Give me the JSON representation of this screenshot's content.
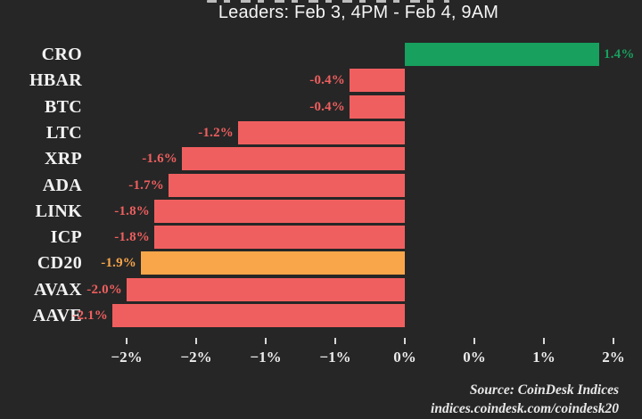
{
  "chart_data": {
    "type": "bar",
    "orientation": "horizontal",
    "title": "Leaders: Feb 3, 4PM - Feb 4, 9AM",
    "categories": [
      "CRO",
      "HBAR",
      "BTC",
      "LTC",
      "XRP",
      "ADA",
      "LINK",
      "ICP",
      "CD20",
      "AVAX",
      "AAVE"
    ],
    "values": [
      1.4,
      -0.4,
      -0.4,
      -1.2,
      -1.6,
      -1.7,
      -1.8,
      -1.8,
      -1.9,
      -2.0,
      -2.1
    ],
    "value_labels": [
      "1.4%",
      "-0.4%",
      "-0.4%",
      "-1.2%",
      "-1.6%",
      "-1.7%",
      "-1.8%",
      "-1.8%",
      "-1.9%",
      "-2.0%",
      "-2.1%"
    ],
    "bar_colors": [
      "#17a05e",
      "#f05f5f",
      "#f05f5f",
      "#f05f5f",
      "#f05f5f",
      "#f05f5f",
      "#f05f5f",
      "#f05f5f",
      "#f9a64a",
      "#f05f5f",
      "#f05f5f"
    ],
    "x_tick_values": [
      -2.0,
      -1.5,
      -1.0,
      -0.5,
      0,
      0.5,
      1.0,
      1.5
    ],
    "x_tick_labels": [
      "−2%",
      "−2%",
      "−1%",
      "−1%",
      "0%",
      "0%",
      "1%",
      "2%"
    ],
    "xlim": [
      -2.3,
      1.7
    ],
    "grid": false,
    "legend": "none",
    "colors": {
      "positive": "#17a05e",
      "negative": "#f05f5f",
      "index_highlight": "#f9a64a",
      "background": "#262626",
      "text": "#f2f2f2"
    },
    "source_line1": "Source: CoinDesk Indices",
    "source_line2": "indices.coindesk.com/coindesk20"
  }
}
